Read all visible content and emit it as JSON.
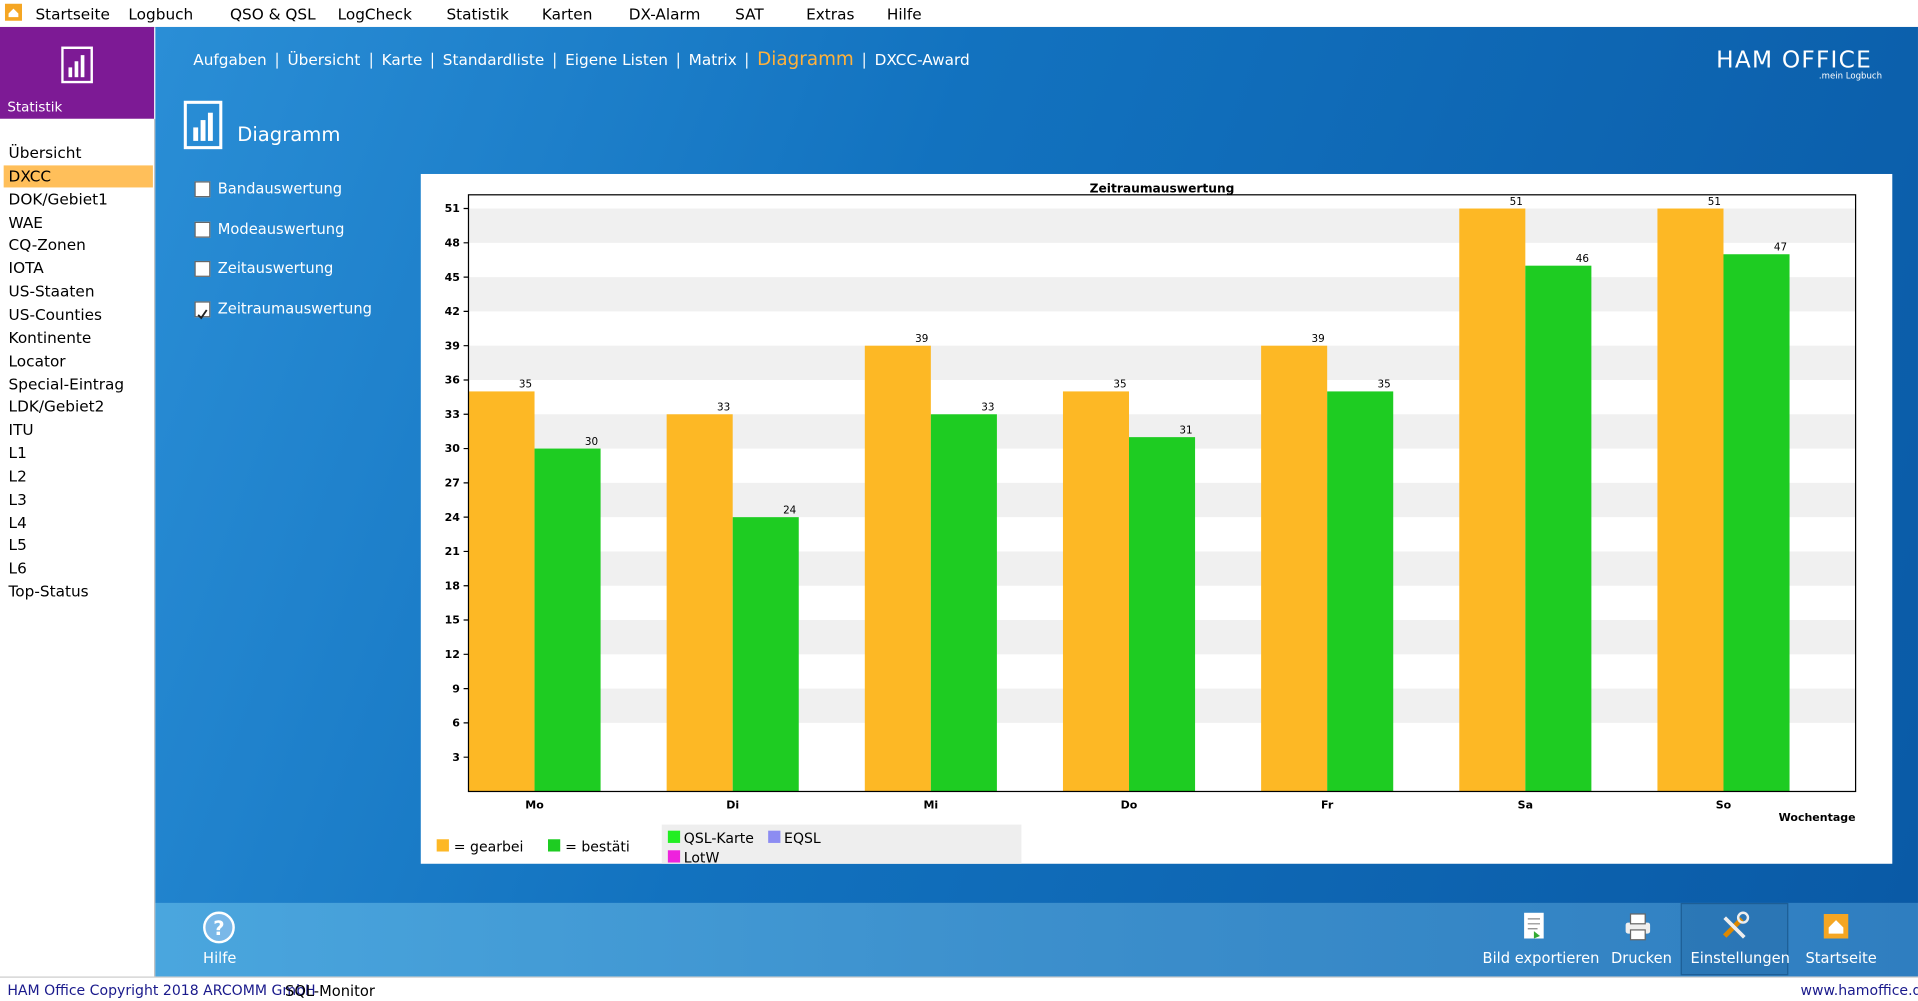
{
  "menu": [
    "Startseite",
    "Logbuch",
    "QSO & QSL",
    "LogCheck",
    "Statistik",
    "Karten",
    "DX-Alarm",
    "SAT",
    "Extras",
    "Hilfe"
  ],
  "sidebar": {
    "header": "Statistik",
    "selected_index": 1,
    "items": [
      "Übersicht",
      "DXCC",
      "DOK/Gebiet1",
      "WAE",
      "CQ-Zonen",
      "IOTA",
      "US-Staaten",
      "US-Counties",
      "Kontinente",
      "Locator",
      "Special-Eintrag",
      "LDK/Gebiet2",
      "ITU",
      "L1",
      "L2",
      "L3",
      "L4",
      "L5",
      "L6",
      "Top-Status"
    ]
  },
  "nav": {
    "active_index": 6,
    "items": [
      "Aufgaben",
      "Übersicht",
      "Karte",
      "Standardliste",
      "Eigene Listen",
      "Matrix",
      "Diagramm",
      "DXCC-Award"
    ]
  },
  "brand": {
    "title": "HAM OFFICE",
    "tagline": ".mein Logbuch"
  },
  "section_title": "Diagramm",
  "options": [
    {
      "label": "Bandauswertung",
      "checked": false
    },
    {
      "label": "Modeauswertung",
      "checked": false
    },
    {
      "label": "Zeitauswertung",
      "checked": false
    },
    {
      "label": "Zeitraumauswertung",
      "checked": true
    }
  ],
  "chart_data": {
    "type": "bar",
    "title": "Zeitraumauswertung",
    "x_label": "Wochentage",
    "categories": [
      "Mo",
      "Di",
      "Mi",
      "Do",
      "Fr",
      "Sa",
      "So"
    ],
    "series": [
      {
        "name": "= gearbei",
        "color": "#fdb825",
        "values": [
          35,
          33,
          39,
          35,
          39,
          51,
          51
        ]
      },
      {
        "name": "= bestäti",
        "color": "#1ecc22",
        "values": [
          30,
          24,
          33,
          31,
          35,
          46,
          47
        ]
      }
    ],
    "ylim": [
      0,
      52.2
    ],
    "yticks": [
      3,
      6,
      9,
      12,
      15,
      18,
      21,
      24,
      27,
      30,
      33,
      36,
      39,
      42,
      45,
      48,
      51
    ],
    "grid": true,
    "extra_legend": [
      {
        "name": "QSL-Karte",
        "color": "#22ee22"
      },
      {
        "name": "EQSL",
        "color": "#8c8cf2"
      },
      {
        "name": "LotW",
        "color": "#ee22dd"
      }
    ]
  },
  "toolbar": {
    "left": "Hilfe",
    "right": [
      "Bild exportieren",
      "Drucken",
      "Einstellungen",
      "Startseite"
    ]
  },
  "status": {
    "copyright": "HAM Office Copyright 2018 ARCOMM GmbH",
    "monitor": "SQL-Monitor",
    "url": "www.hamoffice.de"
  }
}
